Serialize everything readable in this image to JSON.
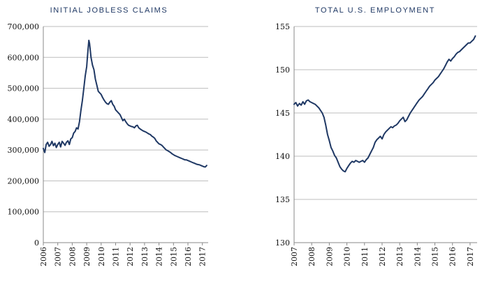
{
  "colors": {
    "series": "#1f3864",
    "title": "#1f3864",
    "grid": "#bdbdbd"
  },
  "chart_data": [
    {
      "type": "line",
      "title": "INITIAL JOBLESS CLAIMS",
      "xlabel": "",
      "ylabel": "",
      "xlim": [
        2006,
        2017.4
      ],
      "ylim": [
        0,
        700000
      ],
      "grid": "horizontal",
      "x_ticks": [
        "2006",
        "2007",
        "2008",
        "2009",
        "2010",
        "2011",
        "2012",
        "2013",
        "2014",
        "2015",
        "2016",
        "2017"
      ],
      "y_ticks": [
        "0",
        "100,000",
        "200,000",
        "300,000",
        "400,000",
        "500,000",
        "600,000",
        "700,000"
      ],
      "series": [
        {
          "x": [
            2006.0,
            2006.1,
            2006.2,
            2006.3,
            2006.4,
            2006.5,
            2006.6,
            2006.7,
            2006.8,
            2006.9,
            2007.0,
            2007.1,
            2007.2,
            2007.3,
            2007.4,
            2007.5,
            2007.6,
            2007.7,
            2007.8,
            2007.9,
            2008.0,
            2008.1,
            2008.2,
            2008.3,
            2008.4,
            2008.5,
            2008.6,
            2008.7,
            2008.8,
            2008.9,
            2009.0,
            2009.05,
            2009.1,
            2009.15,
            2009.2,
            2009.3,
            2009.4,
            2009.5,
            2009.6,
            2009.7,
            2009.8,
            2009.9,
            2010.0,
            2010.1,
            2010.2,
            2010.3,
            2010.4,
            2010.5,
            2010.6,
            2010.7,
            2010.8,
            2010.9,
            2011.0,
            2011.1,
            2011.2,
            2011.3,
            2011.4,
            2011.5,
            2011.6,
            2011.7,
            2011.8,
            2011.9,
            2012.0,
            2012.1,
            2012.2,
            2012.3,
            2012.4,
            2012.5,
            2012.6,
            2012.7,
            2012.8,
            2012.9,
            2013.0,
            2013.1,
            2013.2,
            2013.3,
            2013.4,
            2013.5,
            2013.6,
            2013.7,
            2013.8,
            2013.9,
            2014.0,
            2014.1,
            2014.2,
            2014.3,
            2014.4,
            2014.5,
            2014.6,
            2014.7,
            2014.8,
            2014.9,
            2015.0,
            2015.1,
            2015.2,
            2015.3,
            2015.4,
            2015.5,
            2015.6,
            2015.7,
            2015.8,
            2015.9,
            2016.0,
            2016.1,
            2016.2,
            2016.3,
            2016.4,
            2016.5,
            2016.6,
            2016.7,
            2016.8,
            2016.9,
            2017.0,
            2017.1,
            2017.2,
            2017.3
          ],
          "values": [
            305000,
            292000,
            318000,
            325000,
            312000,
            318000,
            328000,
            314000,
            322000,
            308000,
            318000,
            325000,
            310000,
            328000,
            322000,
            315000,
            325000,
            330000,
            318000,
            336000,
            340000,
            355000,
            360000,
            372000,
            368000,
            392000,
            428000,
            460000,
            500000,
            540000,
            570000,
            600000,
            630000,
            655000,
            645000,
            600000,
            575000,
            560000,
            530000,
            510000,
            490000,
            485000,
            480000,
            470000,
            462000,
            455000,
            450000,
            448000,
            455000,
            460000,
            448000,
            442000,
            430000,
            425000,
            420000,
            415000,
            405000,
            395000,
            400000,
            392000,
            385000,
            380000,
            378000,
            376000,
            375000,
            372000,
            378000,
            380000,
            372000,
            368000,
            365000,
            362000,
            360000,
            358000,
            355000,
            352000,
            350000,
            345000,
            342000,
            338000,
            330000,
            325000,
            320000,
            318000,
            315000,
            310000,
            305000,
            300000,
            298000,
            295000,
            292000,
            288000,
            285000,
            282000,
            280000,
            278000,
            276000,
            274000,
            272000,
            270000,
            268000,
            268000,
            266000,
            264000,
            262000,
            260000,
            258000,
            256000,
            254000,
            253000,
            252000,
            250000,
            248000,
            246000,
            245000,
            250000
          ]
        }
      ]
    },
    {
      "type": "line",
      "title": "TOTAL U.S. EMPLOYMENT",
      "xlabel": "",
      "ylabel": "",
      "xlim": [
        2007,
        2017.4
      ],
      "ylim": [
        130,
        155
      ],
      "grid": "horizontal",
      "x_ticks": [
        "2007",
        "2008",
        "2009",
        "2010",
        "2011",
        "2012",
        "2013",
        "2014",
        "2015",
        "2016",
        "2017"
      ],
      "y_ticks": [
        "130",
        "135",
        "140",
        "145",
        "150",
        "155"
      ],
      "series": [
        {
          "x": [
            2007.0,
            2007.1,
            2007.2,
            2007.3,
            2007.4,
            2007.5,
            2007.6,
            2007.7,
            2007.8,
            2007.9,
            2008.0,
            2008.1,
            2008.2,
            2008.3,
            2008.4,
            2008.5,
            2008.6,
            2008.7,
            2008.8,
            2008.9,
            2009.0,
            2009.1,
            2009.2,
            2009.3,
            2009.4,
            2009.5,
            2009.6,
            2009.7,
            2009.8,
            2009.9,
            2010.0,
            2010.1,
            2010.2,
            2010.3,
            2010.4,
            2010.5,
            2010.6,
            2010.7,
            2010.8,
            2010.9,
            2011.0,
            2011.1,
            2011.2,
            2011.3,
            2011.4,
            2011.5,
            2011.6,
            2011.7,
            2011.8,
            2011.9,
            2012.0,
            2012.1,
            2012.2,
            2012.3,
            2012.4,
            2012.5,
            2012.6,
            2012.7,
            2012.8,
            2012.9,
            2013.0,
            2013.1,
            2013.2,
            2013.3,
            2013.4,
            2013.5,
            2013.6,
            2013.7,
            2013.8,
            2013.9,
            2014.0,
            2014.1,
            2014.2,
            2014.3,
            2014.4,
            2014.5,
            2014.6,
            2014.7,
            2014.8,
            2014.9,
            2015.0,
            2015.1,
            2015.2,
            2015.3,
            2015.4,
            2015.5,
            2015.6,
            2015.7,
            2015.8,
            2015.9,
            2016.0,
            2016.1,
            2016.2,
            2016.3,
            2016.4,
            2016.5,
            2016.6,
            2016.7,
            2016.8,
            2016.9,
            2017.0,
            2017.1,
            2017.2,
            2017.3
          ],
          "values": [
            146.0,
            146.2,
            145.8,
            146.1,
            145.9,
            146.3,
            146.0,
            146.4,
            146.5,
            146.3,
            146.2,
            146.1,
            146.0,
            145.8,
            145.6,
            145.3,
            145.0,
            144.5,
            143.6,
            142.5,
            141.8,
            141.0,
            140.6,
            140.1,
            139.8,
            139.3,
            138.8,
            138.5,
            138.3,
            138.2,
            138.6,
            138.9,
            139.2,
            139.4,
            139.3,
            139.5,
            139.4,
            139.3,
            139.4,
            139.5,
            139.3,
            139.6,
            139.8,
            140.2,
            140.6,
            141.0,
            141.6,
            141.9,
            142.1,
            142.3,
            142.0,
            142.5,
            142.8,
            143.0,
            143.2,
            143.4,
            143.3,
            143.5,
            143.6,
            143.8,
            144.1,
            144.3,
            144.5,
            144.0,
            144.2,
            144.6,
            145.0,
            145.3,
            145.6,
            145.9,
            146.2,
            146.5,
            146.7,
            146.9,
            147.2,
            147.5,
            147.8,
            148.1,
            148.3,
            148.5,
            148.8,
            149.0,
            149.2,
            149.5,
            149.8,
            150.1,
            150.5,
            150.9,
            151.2,
            151.0,
            151.3,
            151.5,
            151.8,
            152.0,
            152.1,
            152.3,
            152.5,
            152.7,
            152.9,
            153.1,
            153.1,
            153.3,
            153.5,
            153.9
          ]
        }
      ]
    }
  ]
}
